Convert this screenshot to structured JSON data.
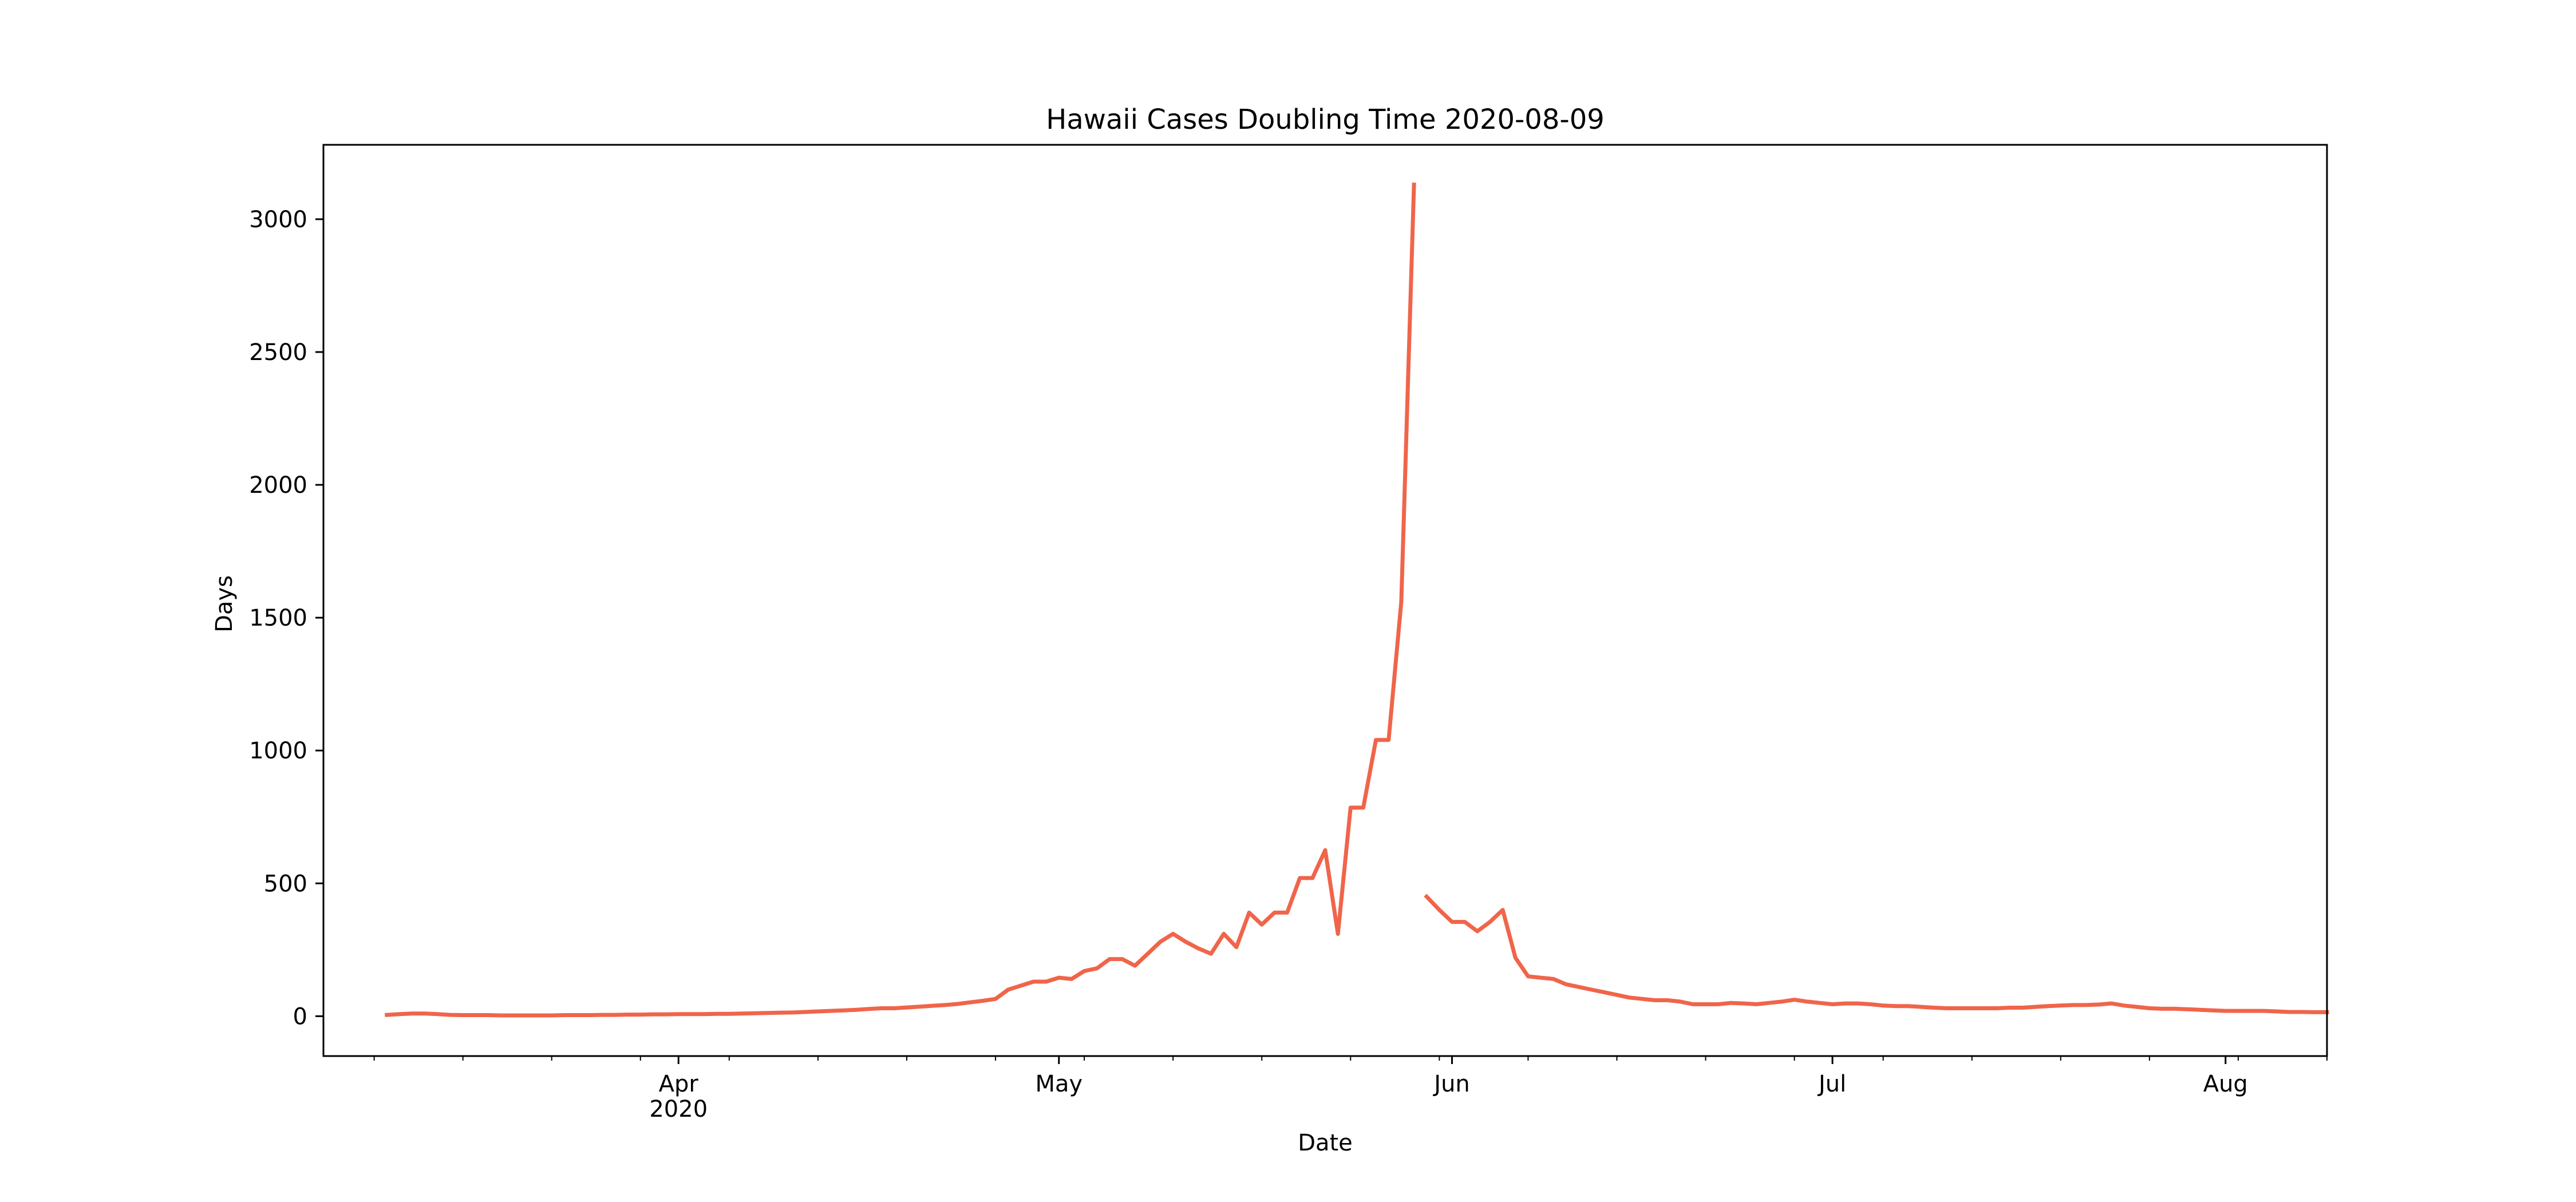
{
  "chart_data": {
    "type": "line",
    "title": "Hawaii Cases Doubling Time 2020-08-09",
    "xlabel": "Date",
    "ylabel": "Days",
    "xlim": [
      "2020-03-04",
      "2020-08-09"
    ],
    "ylim": [
      -150,
      3280
    ],
    "grid": false,
    "line_color": "#f0654a",
    "y_ticks": [
      0,
      500,
      1000,
      1500,
      2000,
      2500,
      3000
    ],
    "x_major_ticks": [
      {
        "date": "2020-04-01",
        "label": "Apr",
        "sublabel": "2020"
      },
      {
        "date": "2020-05-01",
        "label": "May",
        "sublabel": ""
      },
      {
        "date": "2020-06-01",
        "label": "Jun",
        "sublabel": ""
      },
      {
        "date": "2020-07-01",
        "label": "Jul",
        "sublabel": ""
      },
      {
        "date": "2020-08-01",
        "label": "Aug",
        "sublabel": ""
      }
    ],
    "x_minor_ticks": [
      "2020-03-08",
      "2020-03-15",
      "2020-03-22",
      "2020-03-29",
      "2020-04-05",
      "2020-04-12",
      "2020-04-19",
      "2020-04-26",
      "2020-05-03",
      "2020-05-10",
      "2020-05-17",
      "2020-05-24",
      "2020-05-31",
      "2020-06-07",
      "2020-06-14",
      "2020-06-21",
      "2020-06-28",
      "2020-07-05",
      "2020-07-12",
      "2020-07-19",
      "2020-07-26",
      "2020-08-02",
      "2020-08-09"
    ],
    "series": [
      {
        "segments": [
          {
            "x": [
              "2020-03-09",
              "2020-03-10",
              "2020-03-11",
              "2020-03-12",
              "2020-03-13",
              "2020-03-14",
              "2020-03-15",
              "2020-03-16",
              "2020-03-17",
              "2020-03-18",
              "2020-03-19",
              "2020-03-20",
              "2020-03-21",
              "2020-03-22",
              "2020-03-23",
              "2020-03-24",
              "2020-03-25",
              "2020-03-26",
              "2020-03-27",
              "2020-03-28",
              "2020-03-29",
              "2020-03-30",
              "2020-03-31",
              "2020-04-01",
              "2020-04-02",
              "2020-04-03",
              "2020-04-04",
              "2020-04-05",
              "2020-04-06",
              "2020-04-07",
              "2020-04-08",
              "2020-04-09",
              "2020-04-10",
              "2020-04-11",
              "2020-04-12",
              "2020-04-13",
              "2020-04-14",
              "2020-04-15",
              "2020-04-16",
              "2020-04-17",
              "2020-04-18",
              "2020-04-19",
              "2020-04-20",
              "2020-04-21",
              "2020-04-22",
              "2020-04-23",
              "2020-04-24",
              "2020-04-25",
              "2020-04-26",
              "2020-04-27",
              "2020-04-28",
              "2020-04-29",
              "2020-04-30",
              "2020-05-01",
              "2020-05-02",
              "2020-05-03",
              "2020-05-04",
              "2020-05-05",
              "2020-05-06",
              "2020-05-07",
              "2020-05-08",
              "2020-05-09",
              "2020-05-10",
              "2020-05-11",
              "2020-05-12",
              "2020-05-13",
              "2020-05-14",
              "2020-05-15",
              "2020-05-16",
              "2020-05-17",
              "2020-05-18",
              "2020-05-19",
              "2020-05-20",
              "2020-05-21",
              "2020-05-22",
              "2020-05-23",
              "2020-05-24",
              "2020-05-25",
              "2020-05-26",
              "2020-05-27",
              "2020-05-28",
              "2020-05-29"
            ],
            "y": [
              5,
              8,
              10,
              10,
              8,
              5,
              4,
              4,
              4,
              3,
              3,
              3,
              3,
              3,
              4,
              4,
              4,
              5,
              5,
              6,
              6,
              7,
              7,
              8,
              8,
              8,
              9,
              9,
              10,
              11,
              12,
              13,
              14,
              16,
              18,
              20,
              22,
              24,
              27,
              30,
              30,
              33,
              36,
              39,
              42,
              46,
              52,
              58,
              65,
              100,
              115,
              130,
              130,
              145,
              140,
              170,
              180,
              215,
              215,
              190,
              235,
              280,
              310,
              280,
              255,
              235,
              310,
              260,
              390,
              345,
              390,
              390,
              520,
              520,
              625,
              310,
              785,
              785,
              1040,
              1040,
              1560,
              3130
            ]
          },
          {
            "x": [
              "2020-05-30",
              "2020-05-31",
              "2020-06-01",
              "2020-06-02",
              "2020-06-03",
              "2020-06-04",
              "2020-06-05",
              "2020-06-06",
              "2020-06-07",
              "2020-06-08",
              "2020-06-09",
              "2020-06-10",
              "2020-06-11",
              "2020-06-12",
              "2020-06-13",
              "2020-06-14",
              "2020-06-15",
              "2020-06-16",
              "2020-06-17",
              "2020-06-18",
              "2020-06-19",
              "2020-06-20",
              "2020-06-21",
              "2020-06-22",
              "2020-06-23",
              "2020-06-24",
              "2020-06-25",
              "2020-06-26",
              "2020-06-27",
              "2020-06-28",
              "2020-06-29",
              "2020-06-30",
              "2020-07-01",
              "2020-07-02",
              "2020-07-03",
              "2020-07-04",
              "2020-07-05",
              "2020-07-06",
              "2020-07-07",
              "2020-07-08",
              "2020-07-09",
              "2020-07-10",
              "2020-07-11",
              "2020-07-12",
              "2020-07-13",
              "2020-07-14",
              "2020-07-15",
              "2020-07-16",
              "2020-07-17",
              "2020-07-18",
              "2020-07-19",
              "2020-07-20",
              "2020-07-21",
              "2020-07-22",
              "2020-07-23",
              "2020-07-24",
              "2020-07-25",
              "2020-07-26",
              "2020-07-27",
              "2020-07-28",
              "2020-07-29",
              "2020-07-30",
              "2020-07-31",
              "2020-08-01",
              "2020-08-02",
              "2020-08-03",
              "2020-08-04",
              "2020-08-05",
              "2020-08-06",
              "2020-08-07",
              "2020-08-08",
              "2020-08-09"
            ],
            "y": [
              450,
              400,
              355,
              355,
              320,
              355,
              400,
              220,
              150,
              145,
              140,
              120,
              110,
              100,
              90,
              80,
              70,
              65,
              60,
              60,
              55,
              45,
              45,
              45,
              50,
              48,
              45,
              50,
              55,
              62,
              55,
              50,
              45,
              48,
              48,
              45,
              40,
              38,
              38,
              35,
              32,
              30,
              30,
              30,
              30,
              30,
              32,
              32,
              35,
              38,
              40,
              42,
              42,
              44,
              48,
              40,
              35,
              30,
              28,
              28,
              26,
              24,
              22,
              20,
              20,
              20,
              20,
              18,
              16,
              16,
              15,
              15
            ]
          }
        ]
      }
    ]
  }
}
